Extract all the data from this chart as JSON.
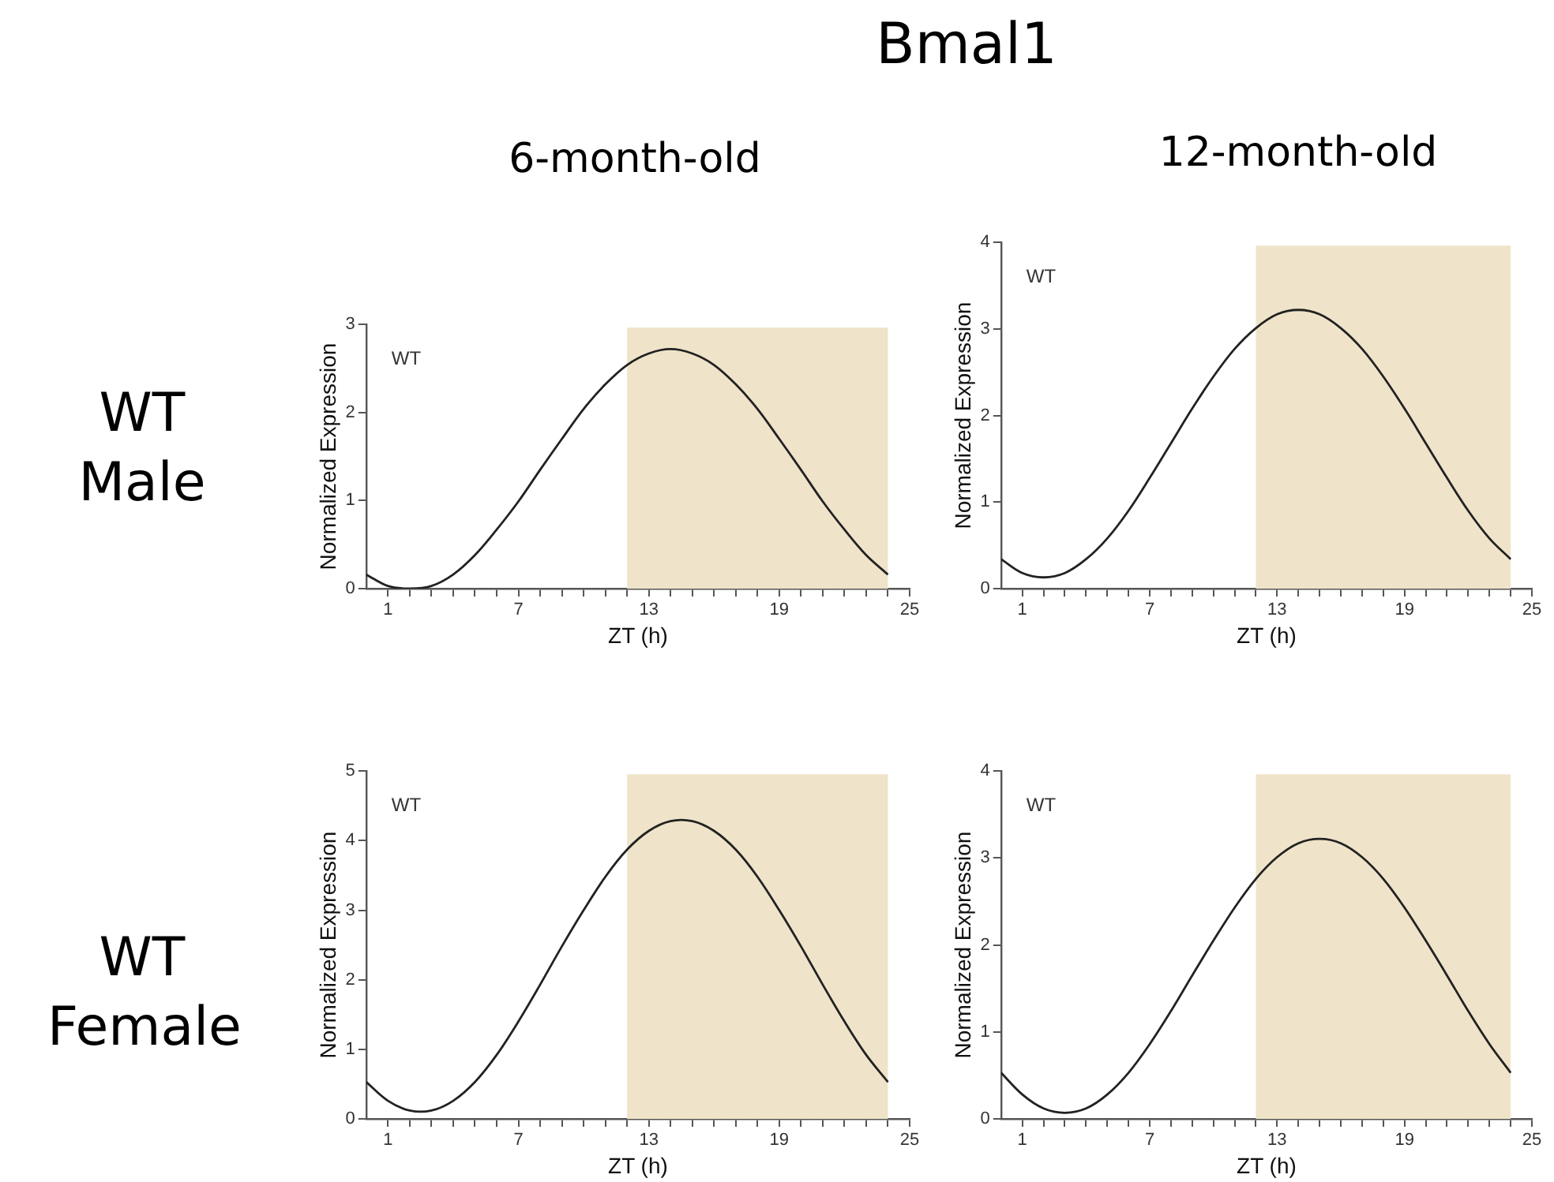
{
  "chart_data": [
    {
      "type": "line",
      "title": "Bmal1",
      "subtitle": "6-month-old",
      "xlabel": "ZT (h)",
      "ylabel": "Normalized Expression",
      "annotations": [
        "WT",
        "WT Male"
      ],
      "x": [
        0,
        1,
        2,
        3,
        4,
        5,
        6,
        7,
        8,
        9,
        10,
        11,
        12,
        13,
        14,
        15,
        16,
        17,
        18,
        19,
        20,
        21,
        22,
        23,
        24
      ],
      "series": [
        {
          "color": "#222222",
          "values": [
            0.16,
            0.03,
            0,
            0.03,
            0.16,
            0.38,
            0.67,
            0.99,
            1.35,
            1.7,
            2.04,
            2.32,
            2.54,
            2.67,
            2.72,
            2.67,
            2.54,
            2.32,
            2.04,
            1.7,
            1.35,
            0.99,
            0.67,
            0.38,
            0.16
          ]
        }
      ],
      "xlim": [
        0,
        25
      ],
      "xticks": [
        1,
        {
          "value": 2,
          "label": null
        },
        {
          "value": 3,
          "label": null
        },
        {
          "value": 4,
          "label": null
        },
        {
          "value": 5,
          "label": null
        },
        {
          "value": 6,
          "label": null
        },
        7,
        {
          "value": 8,
          "label": null
        },
        {
          "value": 9,
          "label": null
        },
        {
          "value": 10,
          "label": null
        },
        {
          "value": 11,
          "label": null
        },
        {
          "value": 12,
          "label": null
        },
        13,
        {
          "value": 14,
          "label": null
        },
        {
          "value": 15,
          "label": null
        },
        {
          "value": 16,
          "label": null
        },
        {
          "value": 17,
          "label": null
        },
        {
          "value": 18,
          "label": null
        },
        19,
        {
          "value": 20,
          "label": null
        },
        {
          "value": 21,
          "label": null
        },
        {
          "value": 22,
          "label": null
        },
        {
          "value": 23,
          "label": null
        },
        {
          "value": 24,
          "label": null
        },
        25
      ],
      "ylim": [
        0,
        3
      ],
      "yticks": [
        0,
        1,
        2,
        3
      ],
      "bands": [
        {
          "axis": "x",
          "from": 12,
          "to": 24,
          "color": "#efe4c9"
        }
      ],
      "marker": "none"
    },
    {
      "type": "line",
      "subtitle": "12-month-old",
      "xlabel": "ZT (h)",
      "ylabel": "Normalized Expression",
      "annotations": [
        "WT"
      ],
      "x": [
        0,
        1,
        2,
        3,
        4,
        5,
        6,
        7,
        8,
        9,
        10,
        11,
        12,
        13,
        14,
        15,
        16,
        17,
        18,
        19,
        20,
        21,
        22,
        23,
        24
      ],
      "series": [
        {
          "color": "#222222",
          "values": [
            0.34,
            0.18,
            0.13,
            0.18,
            0.34,
            0.58,
            0.9,
            1.28,
            1.68,
            2.08,
            2.45,
            2.77,
            3.01,
            3.17,
            3.22,
            3.17,
            3.01,
            2.77,
            2.45,
            2.08,
            1.68,
            1.28,
            0.9,
            0.58,
            0.34
          ]
        }
      ],
      "xlim": [
        0,
        25
      ],
      "xticks": [
        1,
        {
          "value": 2,
          "label": null
        },
        {
          "value": 3,
          "label": null
        },
        {
          "value": 4,
          "label": null
        },
        {
          "value": 5,
          "label": null
        },
        {
          "value": 6,
          "label": null
        },
        7,
        {
          "value": 8,
          "label": null
        },
        {
          "value": 9,
          "label": null
        },
        {
          "value": 10,
          "label": null
        },
        {
          "value": 11,
          "label": null
        },
        {
          "value": 12,
          "label": null
        },
        13,
        {
          "value": 14,
          "label": null
        },
        {
          "value": 15,
          "label": null
        },
        {
          "value": 16,
          "label": null
        },
        {
          "value": 17,
          "label": null
        },
        {
          "value": 18,
          "label": null
        },
        19,
        {
          "value": 20,
          "label": null
        },
        {
          "value": 21,
          "label": null
        },
        {
          "value": 22,
          "label": null
        },
        {
          "value": 23,
          "label": null
        },
        {
          "value": 24,
          "label": null
        },
        25
      ],
      "ylim": [
        0,
        4
      ],
      "yticks": [
        0,
        1,
        2,
        3,
        4
      ],
      "bands": [
        {
          "axis": "x",
          "from": 12,
          "to": 24,
          "color": "#efe4c9"
        }
      ],
      "marker": "none"
    },
    {
      "type": "line",
      "xlabel": "ZT (h)",
      "ylabel": "Normalized Expression",
      "annotations": [
        "WT",
        "WT Female"
      ],
      "x": [
        0,
        1,
        2,
        3,
        4,
        5,
        6,
        7,
        8,
        9,
        10,
        11,
        12,
        13,
        14,
        15,
        16,
        17,
        18,
        19,
        20,
        21,
        22,
        23,
        24
      ],
      "series": [
        {
          "color": "#222222",
          "values": [
            0.53,
            0.26,
            0.12,
            0.12,
            0.26,
            0.53,
            0.92,
            1.4,
            1.93,
            2.48,
            3.0,
            3.48,
            3.87,
            4.14,
            4.28,
            4.28,
            4.14,
            3.87,
            3.48,
            3.0,
            2.48,
            1.93,
            1.4,
            0.92,
            0.53
          ]
        }
      ],
      "xlim": [
        0,
        25
      ],
      "xticks": [
        1,
        {
          "value": 2,
          "label": null
        },
        {
          "value": 3,
          "label": null
        },
        {
          "value": 4,
          "label": null
        },
        {
          "value": 5,
          "label": null
        },
        {
          "value": 6,
          "label": null
        },
        7,
        {
          "value": 8,
          "label": null
        },
        {
          "value": 9,
          "label": null
        },
        {
          "value": 10,
          "label": null
        },
        {
          "value": 11,
          "label": null
        },
        {
          "value": 12,
          "label": null
        },
        13,
        {
          "value": 14,
          "label": null
        },
        {
          "value": 15,
          "label": null
        },
        {
          "value": 16,
          "label": null
        },
        {
          "value": 17,
          "label": null
        },
        {
          "value": 18,
          "label": null
        },
        19,
        {
          "value": 20,
          "label": null
        },
        {
          "value": 21,
          "label": null
        },
        {
          "value": 22,
          "label": null
        },
        {
          "value": 23,
          "label": null
        },
        {
          "value": 24,
          "label": null
        },
        25
      ],
      "ylim": [
        0,
        5
      ],
      "yticks": [
        0,
        1,
        2,
        3,
        4,
        5
      ],
      "bands": [
        {
          "axis": "x",
          "from": 12,
          "to": 24,
          "color": "#efe4c9"
        }
      ],
      "marker": "none"
    },
    {
      "type": "line",
      "xlabel": "ZT (h)",
      "ylabel": "Normalized Expression",
      "annotations": [
        "WT"
      ],
      "x": [
        0,
        1,
        2,
        3,
        4,
        5,
        6,
        7,
        8,
        9,
        10,
        11,
        12,
        13,
        14,
        15,
        16,
        17,
        18,
        19,
        20,
        21,
        22,
        23,
        24
      ],
      "series": [
        {
          "color": "#222222",
          "values": [
            0.53,
            0.28,
            0.12,
            0.07,
            0.12,
            0.28,
            0.53,
            0.86,
            1.24,
            1.65,
            2.05,
            2.43,
            2.76,
            3.01,
            3.17,
            3.22,
            3.17,
            3.01,
            2.76,
            2.43,
            2.05,
            1.65,
            1.24,
            0.86,
            0.53
          ]
        }
      ],
      "xlim": [
        0,
        25
      ],
      "xticks": [
        1,
        {
          "value": 2,
          "label": null
        },
        {
          "value": 3,
          "label": null
        },
        {
          "value": 4,
          "label": null
        },
        {
          "value": 5,
          "label": null
        },
        {
          "value": 6,
          "label": null
        },
        7,
        {
          "value": 8,
          "label": null
        },
        {
          "value": 9,
          "label": null
        },
        {
          "value": 10,
          "label": null
        },
        {
          "value": 11,
          "label": null
        },
        {
          "value": 12,
          "label": null
        },
        13,
        {
          "value": 14,
          "label": null
        },
        {
          "value": 15,
          "label": null
        },
        {
          "value": 16,
          "label": null
        },
        {
          "value": 17,
          "label": null
        },
        {
          "value": 18,
          "label": null
        },
        19,
        {
          "value": 20,
          "label": null
        },
        {
          "value": 21,
          "label": null
        },
        {
          "value": 22,
          "label": null
        },
        {
          "value": 23,
          "label": null
        },
        {
          "value": 24,
          "label": null
        },
        25
      ],
      "ylim": [
        0,
        4
      ],
      "yticks": [
        0,
        1,
        2,
        3,
        4
      ],
      "bands": [
        {
          "axis": "x",
          "from": 12,
          "to": 24,
          "color": "#efe4c9"
        }
      ],
      "marker": "none"
    }
  ]
}
